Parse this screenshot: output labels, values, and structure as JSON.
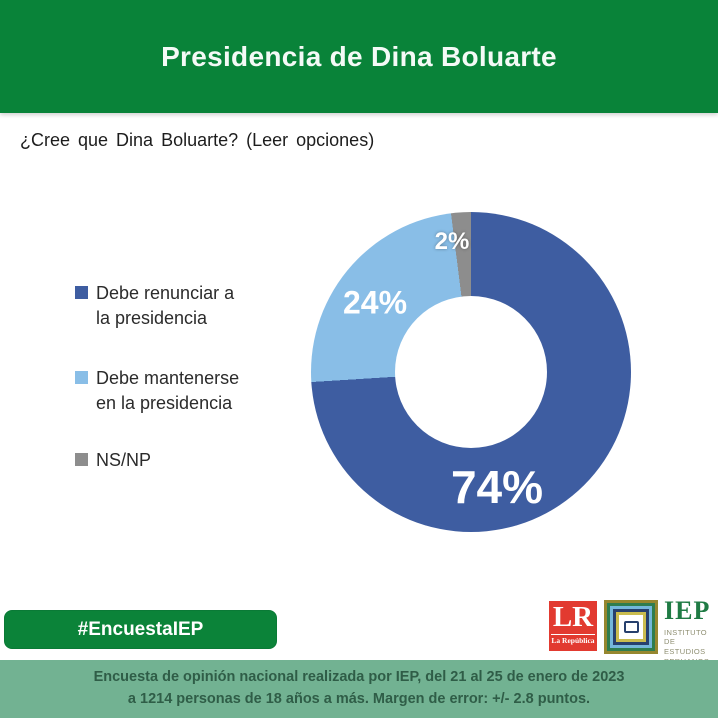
{
  "header": {
    "title": "Presidencia de Dina Boluarte"
  },
  "question": "¿Cree que Dina Boluarte? (Leer opciones)",
  "chart_data": {
    "type": "pie",
    "subtype": "donut",
    "title": "Presidencia de Dina Boluarte",
    "question": "¿Cree que Dina Boluarte? (Leer opciones)",
    "categories": [
      "Debe renunciar a la presidencia",
      "Debe mantenerse en la presidencia",
      "NS/NP"
    ],
    "values": [
      74,
      24,
      2
    ],
    "unit": "%",
    "slice_labels": [
      "74%",
      "24%",
      "2%"
    ],
    "colors": [
      "#3e5da1",
      "#89bee7",
      "#8d8d8d"
    ],
    "start_angle_deg": 0,
    "direction": "clockwise",
    "inner_radius_fraction": 0.47,
    "legend_position": "left",
    "legend": [
      {
        "label": "Debe renunciar a\nla presidencia",
        "color": "#3e5da1"
      },
      {
        "label": "Debe mantenerse\nen la presidencia",
        "color": "#89bee7"
      },
      {
        "label": "NS/NP",
        "color": "#8d8d8d"
      }
    ]
  },
  "hashtag_button": {
    "label": "#EncuestaIEP"
  },
  "logos": {
    "lr": {
      "abbr": "LR",
      "name": "La República"
    },
    "iep": {
      "abbr": "IEP",
      "org": "INSTITUTO DE\nESTUDIOS\nPERUANOS"
    }
  },
  "footer": {
    "text": "Encuesta de opinión nacional realizada por IEP, del 21 al 25 de enero de 2023\na 1214 personas de 18 años a más. Margen de error: +/- 2.8 puntos."
  },
  "theme": {
    "header_green": "#098339",
    "banner_green": "#72b292",
    "banner_text": "#2f5d47",
    "lr_red": "#e23a30",
    "iep_green": "#1f7b44"
  }
}
